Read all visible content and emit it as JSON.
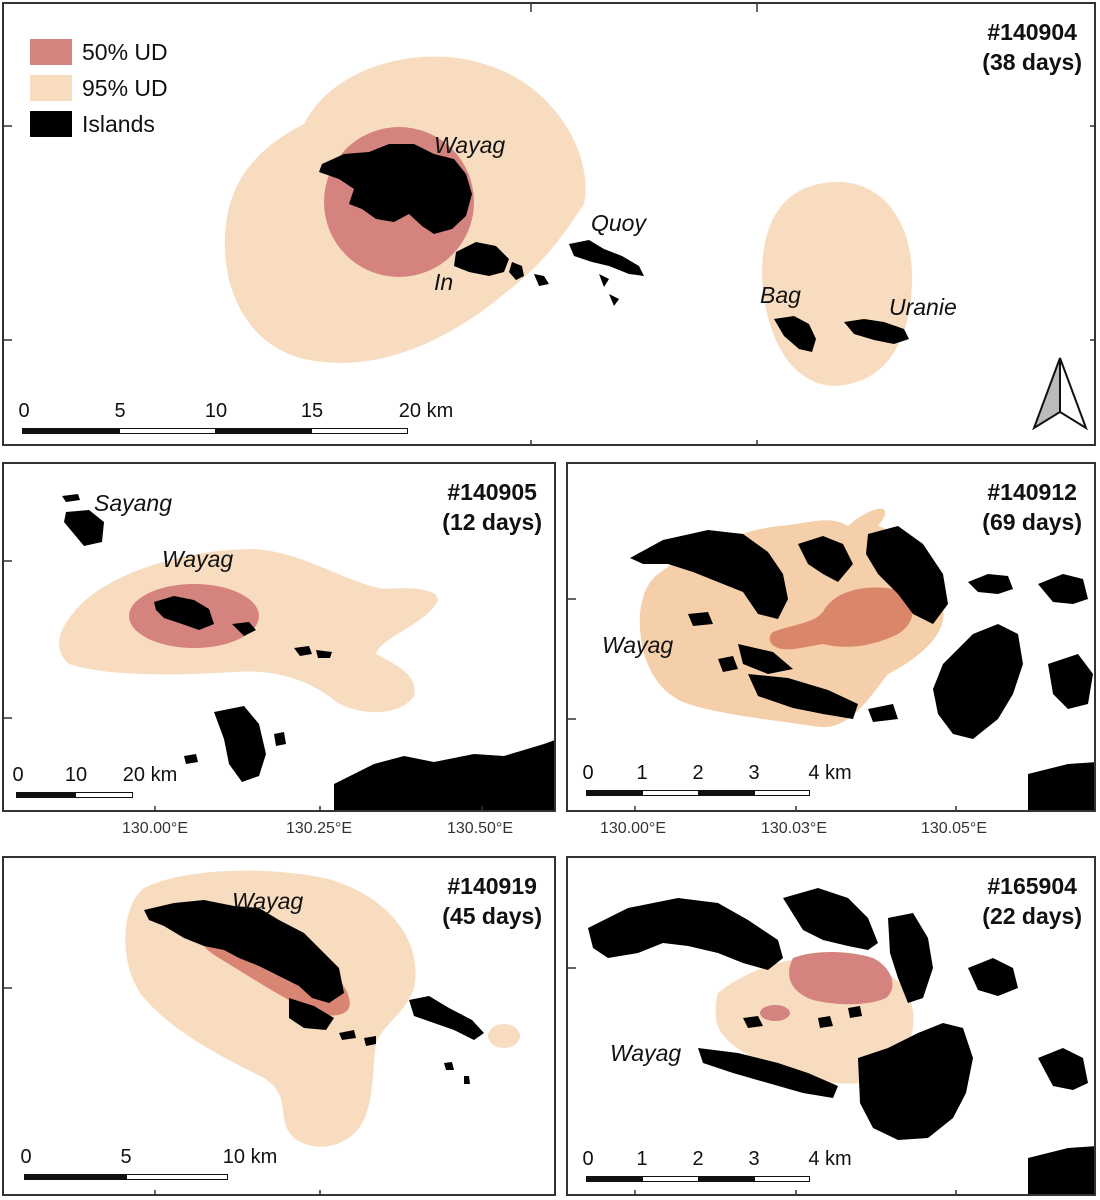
{
  "colors": {
    "ud50": "#d4857f",
    "ud95": "#f8dcc0",
    "ud95b": "#f5ceaa",
    "islands": "#000000",
    "frame": "#333333"
  },
  "legend": [
    {
      "label": "50% UD",
      "color": "#d4837e"
    },
    {
      "label": "95% UD",
      "color": "#f8dcc0"
    },
    {
      "label": "Islands",
      "color": "#000000"
    }
  ],
  "panels": {
    "p140904": {
      "id": "#140904",
      "days": "(38 days)",
      "places": {
        "wayag": "Wayag",
        "in": "In",
        "quoy": "Quoy",
        "bag": "Bag",
        "uranie": "Uranie"
      },
      "scale": [
        "0",
        "5",
        "10",
        "15",
        "20 km"
      ],
      "north_icon": "north-arrow-icon"
    },
    "p140905": {
      "id": "#140905",
      "days": "(12 days)",
      "places": {
        "sayang": "Sayang",
        "wayag": "Wayag"
      },
      "scale": [
        "0",
        "10",
        "20 km"
      ]
    },
    "p140912": {
      "id": "#140912",
      "days": "(69 days)",
      "places": {
        "wayag": "Wayag"
      },
      "scale": [
        "0",
        "1",
        "2",
        "3",
        "4 km"
      ]
    },
    "p140919": {
      "id": "#140919",
      "days": "(45 days)",
      "places": {
        "wayag": "Wayag"
      },
      "scale": [
        "0",
        "5",
        "10 km"
      ]
    },
    "p165904": {
      "id": "#165904",
      "days": "(22 days)",
      "places": {
        "wayag": "Wayag"
      },
      "scale": [
        "0",
        "1",
        "2",
        "3",
        "4 km"
      ]
    }
  },
  "axes": {
    "left_lon": [
      "130.00°E",
      "130.25°E",
      "130.50°E"
    ],
    "right_lon": [
      "130.00°E",
      "130.03°E",
      "130.05°E"
    ]
  }
}
